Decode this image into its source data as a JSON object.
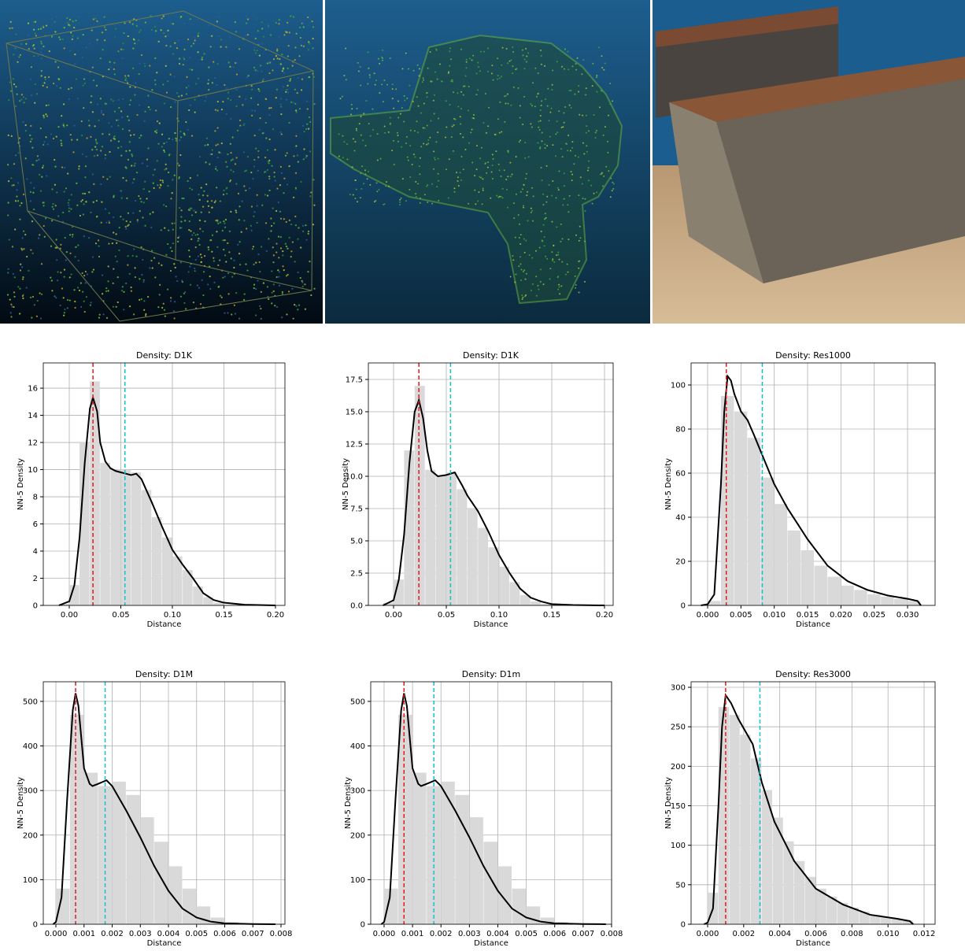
{
  "chart_data": [
    {
      "type": "density",
      "title": "Density: D1K",
      "xlabel": "Distance",
      "ylabel": "NN-5 Density",
      "grid": true,
      "xlim": [
        -0.0252,
        0.2092
      ],
      "ylim": [
        0,
        17.86
      ],
      "xticks": [
        {
          "value": 0,
          "label": "0.00"
        },
        0.05,
        {
          "value": 0.1,
          "label": "0.10"
        },
        0.15,
        {
          "value": 0.2,
          "label": "0.20"
        }
      ],
      "yticks": [
        0,
        2,
        4,
        6,
        8,
        10,
        12,
        14,
        16
      ],
      "hist_color": "#d9d9d9",
      "bins": [
        -0.01,
        0,
        0.01,
        0.02,
        0.03,
        0.04,
        0.05,
        0.06,
        0.07,
        0.08,
        0.09,
        0.1,
        0.11,
        0.12,
        0.13,
        0.14,
        0.15
      ],
      "counts": [
        0.1,
        1.5,
        12,
        16.5,
        10.5,
        10,
        10,
        9.8,
        8.5,
        6.5,
        5,
        3.6,
        2.6,
        1.4,
        0.6,
        0.2
      ],
      "line": {
        "color": "#000000",
        "x": [
          -0.01,
          0,
          0.005,
          0.01,
          0.015,
          0.02,
          0.023,
          0.027,
          0.03,
          0.035,
          0.04,
          0.045,
          0.05,
          0.055,
          0.06,
          0.065,
          0.07,
          0.08,
          0.09,
          0.1,
          0.11,
          0.12,
          0.13,
          0.14,
          0.15,
          0.17,
          0.2
        ],
        "values": [
          0,
          0.3,
          1.5,
          5,
          10.5,
          14.5,
          15.3,
          14.3,
          12,
          10.6,
          10.1,
          9.9,
          9.8,
          9.7,
          9.6,
          9.7,
          9.3,
          7.6,
          5.8,
          4.1,
          3,
          2,
          0.9,
          0.4,
          0.2,
          0.05,
          0
        ]
      },
      "vlines": [
        {
          "x": 0.023,
          "color": "#e41a1c"
        },
        {
          "x": 0.054,
          "color": "#17becf"
        }
      ]
    },
    {
      "type": "density",
      "title": "Density: D1K",
      "xlabel": "Distance",
      "ylabel": "NN-5 Density",
      "grid": true,
      "xlim": [
        -0.0239,
        0.2082
      ],
      "ylim": [
        0,
        18.78
      ],
      "xticks": [
        {
          "value": 0,
          "label": "0.00"
        },
        0.05,
        {
          "value": 0.1,
          "label": "0.10"
        },
        0.15,
        {
          "value": 0.2,
          "label": "0.20"
        }
      ],
      "yticks": [
        {
          "value": 0,
          "label": "0.0"
        },
        2.5,
        {
          "value": 5,
          "label": "5.0"
        },
        7.5,
        {
          "value": 10,
          "label": "10.0"
        },
        12.5,
        {
          "value": 15,
          "label": "15.0"
        },
        17.5
      ],
      "hist_color": "#d9d9d9",
      "bins": [
        -0.01,
        0,
        0.01,
        0.02,
        0.03,
        0.04,
        0.05,
        0.06,
        0.07,
        0.08,
        0.09,
        0.1,
        0.11,
        0.12,
        0.13,
        0.14,
        0.15
      ],
      "counts": [
        0.2,
        2,
        12,
        17,
        10.5,
        10,
        10.3,
        9,
        7.5,
        6,
        4.5,
        3,
        1.8,
        0.8,
        0.3,
        0.1
      ],
      "line": {
        "color": "#000000",
        "x": [
          -0.01,
          0,
          0.005,
          0.01,
          0.015,
          0.02,
          0.024,
          0.028,
          0.032,
          0.036,
          0.042,
          0.05,
          0.058,
          0.065,
          0.07,
          0.08,
          0.09,
          0.1,
          0.11,
          0.12,
          0.13,
          0.14,
          0.15,
          0.17,
          0.2
        ],
        "values": [
          0,
          0.4,
          2,
          5.5,
          11,
          15,
          15.9,
          14.5,
          12,
          10.4,
          10,
          10.1,
          10.3,
          9.3,
          8.5,
          7.3,
          5.7,
          3.9,
          2.5,
          1.3,
          0.6,
          0.3,
          0.1,
          0.03,
          0
        ]
      },
      "vlines": [
        {
          "x": 0.024,
          "color": "#e41a1c"
        },
        {
          "x": 0.054,
          "color": "#17becf"
        }
      ]
    },
    {
      "type": "density",
      "title": "Density: Res1000",
      "xlabel": "Distance",
      "ylabel": "NN-5 Density",
      "grid": true,
      "xlim": [
        -0.00248,
        0.03413
      ],
      "ylim": [
        0,
        110
      ],
      "xticks": [
        {
          "value": 0,
          "label": "0.000"
        },
        0.005,
        {
          "value": 0.01,
          "label": "0.010"
        },
        0.015,
        {
          "value": 0.02,
          "label": "0.020"
        },
        0.025,
        {
          "value": 0.03,
          "label": "0.030"
        }
      ],
      "yticks": [
        0,
        20,
        40,
        60,
        80,
        100
      ],
      "hist_color": "#d9d9d9",
      "bins": [
        -0.002,
        0,
        0.002,
        0.004,
        0.006,
        0.008,
        0.01,
        0.012,
        0.014,
        0.016,
        0.018,
        0.02,
        0.022,
        0.024,
        0.026,
        0.028,
        0.03,
        0.032
      ],
      "counts": [
        0,
        2,
        95,
        88,
        76,
        58,
        46,
        34,
        25,
        18,
        13,
        9,
        7,
        5,
        4,
        3,
        2
      ],
      "line": {
        "color": "#000000",
        "x": [
          -0.001,
          0,
          0.001,
          0.002,
          0.0025,
          0.003,
          0.0035,
          0.004,
          0.005,
          0.006,
          0.007,
          0.0085,
          0.01,
          0.012,
          0.015,
          0.018,
          0.021,
          0.024,
          0.027,
          0.03,
          0.0315,
          0.032
        ],
        "values": [
          0,
          0.5,
          5,
          55,
          88,
          104,
          102,
          96,
          88,
          84,
          77,
          66,
          55,
          44,
          30,
          18,
          11,
          7,
          4.5,
          3,
          2,
          0
        ]
      },
      "vlines": [
        {
          "x": 0.0028,
          "color": "#e41a1c"
        },
        {
          "x": 0.0082,
          "color": "#17becf"
        }
      ]
    },
    {
      "type": "density",
      "title": "Density: D1M",
      "xlabel": "Distance",
      "ylabel": "NN-5 Density",
      "grid": true,
      "xlim": [
        -0.000448,
        0.00814
      ],
      "ylim": [
        0,
        544
      ],
      "xticks": [
        {
          "value": 0,
          "label": "0.000"
        },
        0.001,
        0.002,
        0.003,
        0.004,
        0.005,
        0.006,
        0.007,
        0.008
      ],
      "yticks": [
        0,
        100,
        200,
        300,
        400,
        500
      ],
      "hist_color": "#d9d9d9",
      "bins": [
        0,
        0.0005,
        0.001,
        0.0015,
        0.002,
        0.0025,
        0.003,
        0.0035,
        0.004,
        0.0045,
        0.005,
        0.0055,
        0.006,
        0.0065
      ],
      "counts": [
        80,
        470,
        340,
        310,
        320,
        290,
        240,
        185,
        130,
        80,
        40,
        15,
        5
      ],
      "line": {
        "color": "#000000",
        "x": [
          -0.0001,
          0,
          0.0002,
          0.0004,
          0.0006,
          0.0007,
          0.0008,
          0.001,
          0.0012,
          0.0013,
          0.0015,
          0.0018,
          0.002,
          0.0025,
          0.003,
          0.0035,
          0.004,
          0.0045,
          0.005,
          0.0055,
          0.006,
          0.007,
          0.0078
        ],
        "values": [
          0,
          5,
          60,
          280,
          480,
          518,
          490,
          350,
          315,
          310,
          315,
          323,
          310,
          255,
          195,
          130,
          75,
          35,
          15,
          6,
          2,
          0.5,
          0
        ]
      },
      "vlines": [
        {
          "x": 0.0007,
          "color": "#e41a1c"
        },
        {
          "x": 0.00175,
          "color": "#17becf"
        }
      ]
    },
    {
      "type": "density",
      "title": "Density: D1m",
      "xlabel": "Distance",
      "ylabel": "NN-5 Density",
      "grid": true,
      "xlim": [
        -0.00047,
        0.008
      ],
      "ylim": [
        0,
        544
      ],
      "xticks": [
        {
          "value": 0,
          "label": "0.000"
        },
        0.001,
        0.002,
        0.003,
        0.004,
        0.005,
        0.006,
        0.007,
        0.008
      ],
      "yticks": [
        0,
        100,
        200,
        300,
        400,
        500
      ],
      "hist_color": "#d9d9d9",
      "bins": [
        0,
        0.0005,
        0.001,
        0.0015,
        0.002,
        0.0025,
        0.003,
        0.0035,
        0.004,
        0.0045,
        0.005,
        0.0055,
        0.006,
        0.0065
      ],
      "counts": [
        80,
        470,
        340,
        310,
        320,
        290,
        240,
        185,
        130,
        80,
        40,
        15,
        5
      ],
      "line": {
        "color": "#000000",
        "x": [
          -0.0001,
          0,
          0.0002,
          0.0004,
          0.0006,
          0.0007,
          0.0008,
          0.001,
          0.0012,
          0.0013,
          0.0015,
          0.0018,
          0.002,
          0.0025,
          0.003,
          0.0035,
          0.004,
          0.0045,
          0.005,
          0.0055,
          0.006,
          0.007,
          0.0078
        ],
        "values": [
          0,
          5,
          60,
          280,
          480,
          518,
          490,
          350,
          315,
          310,
          315,
          323,
          310,
          255,
          195,
          130,
          75,
          35,
          15,
          6,
          2,
          0.5,
          0
        ]
      },
      "vlines": [
        {
          "x": 0.0007,
          "color": "#e41a1c"
        },
        {
          "x": 0.00175,
          "color": "#17becf"
        }
      ]
    },
    {
      "type": "density",
      "title": "Density: Res3000",
      "xlabel": "Distance",
      "ylabel": "NN-5 Density",
      "grid": true,
      "xlim": [
        -0.000916,
        0.01261
      ],
      "ylim": [
        0,
        307
      ],
      "xticks": [
        {
          "value": 0,
          "label": "0.000"
        },
        0.002,
        0.004,
        0.006,
        0.008,
        {
          "value": 0.01,
          "label": "0.010"
        },
        0.012
      ],
      "yticks": [
        0,
        50,
        100,
        150,
        200,
        250,
        300
      ],
      "hist_color": "#d9d9d9",
      "bins": [
        0,
        0.0006,
        0.0012,
        0.0018,
        0.0024,
        0.003,
        0.0036,
        0.0042,
        0.0048,
        0.0054,
        0.006,
        0.0066,
        0.0072,
        0.0078,
        0.0084,
        0.009,
        0.0096,
        0.0102,
        0.0108,
        0.0114
      ],
      "counts": [
        40,
        275,
        265,
        240,
        210,
        170,
        135,
        105,
        80,
        60,
        45,
        35,
        27,
        21,
        16,
        12,
        9,
        7,
        5
      ],
      "line": {
        "color": "#000000",
        "x": [
          -0.0002,
          0,
          0.0003,
          0.0006,
          0.0008,
          0.001,
          0.0013,
          0.0017,
          0.0025,
          0.003,
          0.0037,
          0.0048,
          0.006,
          0.0075,
          0.009,
          0.0105,
          0.0112,
          0.0114
        ],
        "values": [
          0,
          2,
          20,
          150,
          250,
          290,
          280,
          260,
          228,
          180,
          130,
          80,
          45,
          25,
          12,
          7,
          4,
          0
        ]
      },
      "vlines": [
        {
          "x": 0.001,
          "color": "#e41a1c"
        },
        {
          "x": 0.0029,
          "color": "#17becf"
        }
      ]
    }
  ]
}
